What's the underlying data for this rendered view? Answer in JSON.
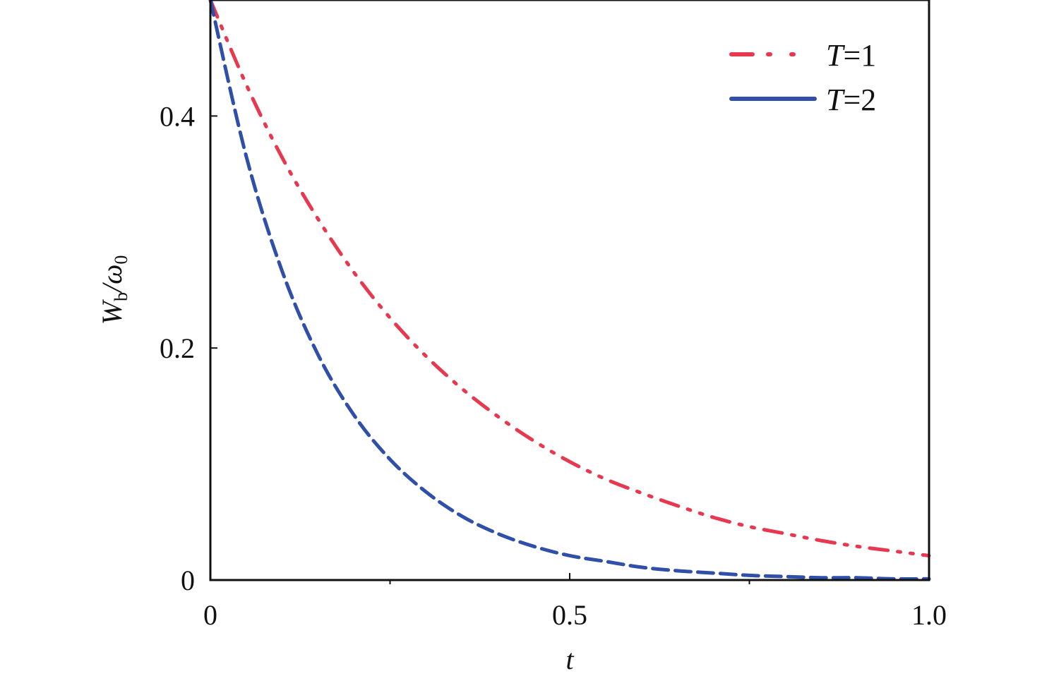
{
  "chart_data": {
    "type": "line",
    "title": "",
    "xlabel": "t",
    "ylabel_main": "W",
    "ylabel_sub": "b",
    "ylabel_rest": "/ω",
    "ylabel_sub2": "0",
    "xlim": [
      0,
      1.0
    ],
    "ylim": [
      0,
      0.5
    ],
    "xticks": [
      0,
      0.5,
      1.0
    ],
    "xtick_labels": [
      "0",
      "0.5",
      "1.0"
    ],
    "xminor_ticks": [
      0.25,
      0.75
    ],
    "yticks": [
      0,
      0.2,
      0.4
    ],
    "ytick_labels": [
      "0",
      "0.2",
      "0.4"
    ],
    "grid": false,
    "legend_placement": "top-right",
    "x": [
      0,
      0.05,
      0.1,
      0.15,
      0.2,
      0.25,
      0.3,
      0.35,
      0.4,
      0.45,
      0.5,
      0.55,
      0.6,
      0.65,
      0.7,
      0.75,
      0.8,
      0.85,
      0.9,
      0.95,
      1.0
    ],
    "series": [
      {
        "name_var": "T",
        "name_val": "=1",
        "color": "#e8384f",
        "style": "dash-dot-dot",
        "values": [
          0.5,
          0.427,
          0.364,
          0.311,
          0.265,
          0.226,
          0.193,
          0.165,
          0.141,
          0.12,
          0.102,
          0.087,
          0.075,
          0.064,
          0.054,
          0.046,
          0.04,
          0.034,
          0.029,
          0.025,
          0.021
        ]
      },
      {
        "name_var": "T",
        "name_val": "=2",
        "color": "#2f4fa8",
        "style": "dashed",
        "values": [
          0.5,
          0.365,
          0.266,
          0.194,
          0.142,
          0.104,
          0.076,
          0.055,
          0.04,
          0.029,
          0.021,
          0.016,
          0.011,
          0.008,
          0.006,
          0.004,
          0.003,
          0.002,
          0.002,
          0.001,
          0.001
        ]
      }
    ]
  }
}
